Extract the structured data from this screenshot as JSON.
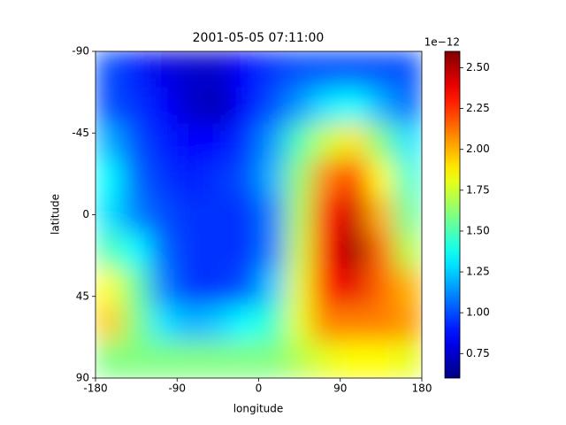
{
  "chart_data": {
    "type": "heatmap",
    "title": "2001-05-05 07:11:00",
    "x_label": "longitude",
    "y_label": "latitude",
    "x": [
      -165,
      -135,
      -105,
      -75,
      -45,
      -15,
      15,
      45,
      75,
      105,
      135,
      165
    ],
    "y": [
      -80,
      -60,
      -40,
      -20,
      0,
      20,
      40,
      60,
      80
    ],
    "z": [
      [
        1.0,
        0.9,
        0.8,
        0.75,
        0.75,
        0.85,
        0.95,
        1.0,
        1.0,
        1.0,
        1.0,
        1.0
      ],
      [
        1.0,
        0.95,
        0.85,
        0.75,
        0.7,
        0.85,
        1.0,
        1.15,
        1.3,
        1.35,
        1.2,
        1.05
      ],
      [
        1.2,
        1.0,
        0.9,
        0.85,
        0.85,
        0.95,
        1.15,
        1.5,
        1.75,
        1.9,
        1.6,
        1.3
      ],
      [
        1.35,
        1.05,
        0.95,
        0.9,
        0.95,
        1.0,
        1.2,
        1.65,
        2.1,
        2.25,
        1.85,
        1.45
      ],
      [
        1.3,
        1.1,
        1.0,
        0.95,
        0.95,
        0.95,
        1.1,
        1.7,
        2.3,
        2.45,
        2.0,
        1.55
      ],
      [
        1.5,
        1.35,
        1.05,
        0.95,
        0.95,
        0.95,
        1.1,
        1.75,
        2.35,
        2.55,
        2.15,
        1.7
      ],
      [
        1.85,
        1.55,
        1.1,
        0.95,
        0.95,
        1.0,
        1.25,
        1.8,
        2.3,
        2.4,
        2.15,
        2.0
      ],
      [
        1.95,
        1.6,
        1.3,
        1.2,
        1.25,
        1.35,
        1.45,
        1.8,
        2.1,
        2.1,
        2.1,
        2.05
      ],
      [
        1.6,
        1.6,
        1.6,
        1.6,
        1.6,
        1.6,
        1.6,
        1.7,
        1.8,
        1.85,
        1.85,
        1.8
      ]
    ],
    "xlim": [
      -180,
      180
    ],
    "xticks": [
      -180,
      -90,
      0,
      90,
      180
    ],
    "ylim": [
      90,
      -90
    ],
    "yticks": [
      -90,
      -45,
      0,
      45,
      90
    ],
    "colormap": "jet",
    "clim": [
      0.6,
      2.6
    ],
    "cticks": [
      0.75,
      {
        "value": 1,
        "label": "1.00"
      },
      1.25,
      {
        "value": 1.5,
        "label": "1.50"
      },
      1.75,
      {
        "value": 2,
        "label": "2.00"
      },
      2.25,
      {
        "value": 2.5,
        "label": "2.50"
      }
    ],
    "colorbar_offset": "1e−12"
  }
}
